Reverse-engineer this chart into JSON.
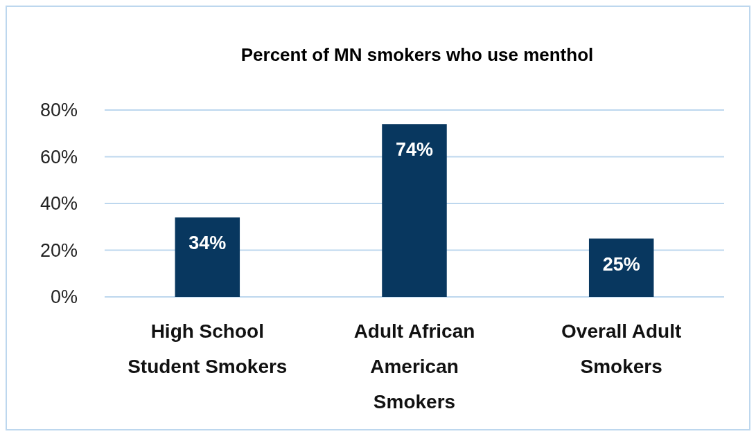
{
  "chart_data": {
    "type": "bar",
    "title": "Percent of MN smokers who use menthol",
    "categories": [
      "High School Student Smokers",
      "Adult African American Smokers",
      "Overall Adult Smokers"
    ],
    "values": [
      34,
      74,
      25
    ],
    "color": "#08375f",
    "ylim": [
      0,
      80
    ],
    "yticks": [
      {
        "value": 0,
        "label": "0%"
      },
      {
        "value": 20,
        "label": "20%"
      },
      {
        "value": 40,
        "label": "40%"
      },
      {
        "value": 60,
        "label": "60%"
      },
      {
        "value": 80,
        "label": "80%"
      }
    ],
    "grid": "y",
    "value_labels": [
      "34%",
      "74%",
      "25%"
    ]
  }
}
